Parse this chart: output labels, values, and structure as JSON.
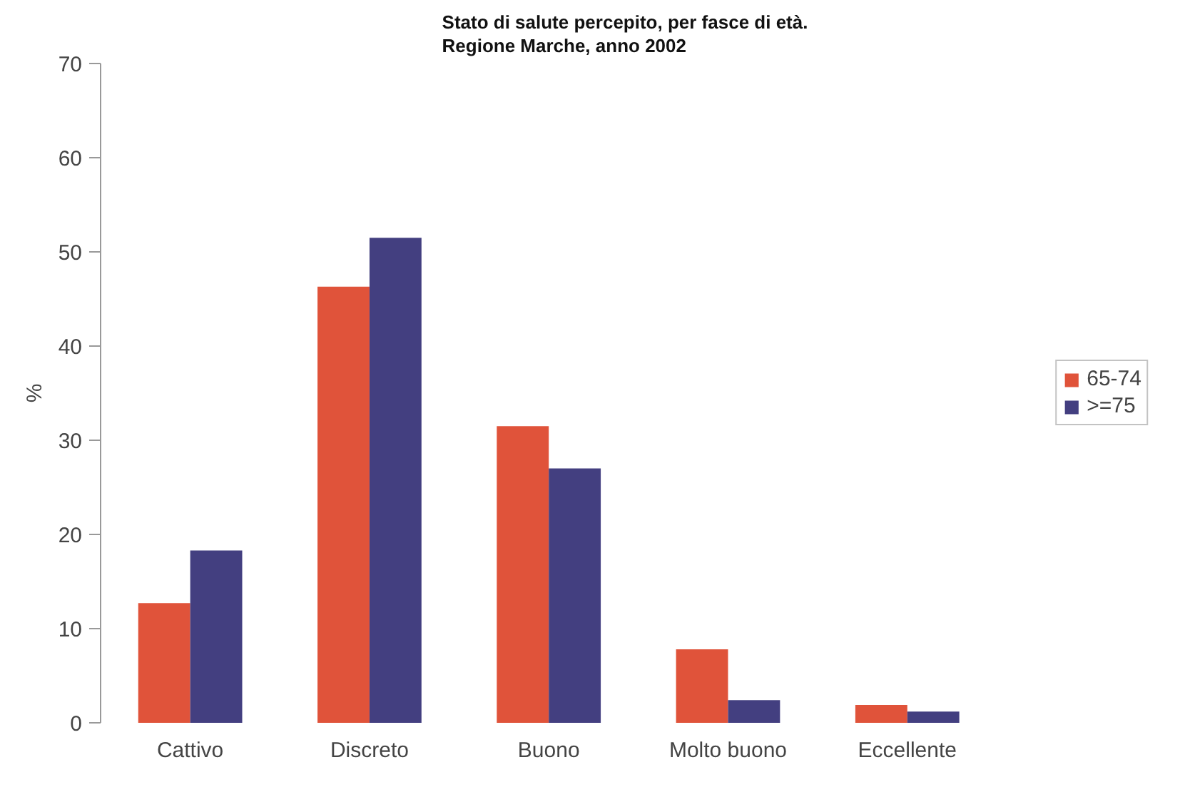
{
  "chart_data": {
    "type": "bar",
    "title": "Stato di salute percepito, per fasce di età.\nRegione Marche, anno 2002",
    "ylabel": "%",
    "categories": [
      "Cattivo",
      "Discreto",
      "Buono",
      "Molto buono",
      "Eccellente"
    ],
    "series": [
      {
        "name": "65-74",
        "color": "#e0533a",
        "values": [
          12.7,
          46.3,
          31.5,
          7.8,
          1.9
        ]
      },
      {
        "name": ">=75",
        "color": "#433f80",
        "values": [
          18.3,
          51.5,
          27.0,
          2.4,
          1.2
        ]
      }
    ],
    "ylim": [
      0,
      70
    ],
    "yticks": [
      0,
      10,
      20,
      30,
      40,
      50,
      60,
      70
    ],
    "grid": false,
    "legend": "right"
  }
}
